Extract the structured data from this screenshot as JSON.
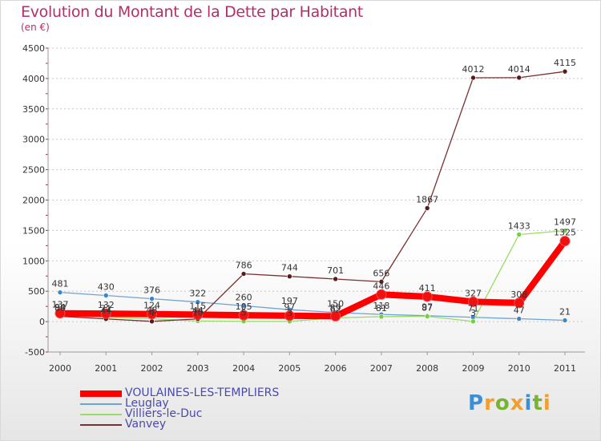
{
  "header": {
    "title": "Evolution du Montant de la Dette par Habitant",
    "unit": "(en €)"
  },
  "logo": {
    "text": "Proxiti"
  },
  "colors": {
    "title": "#b0306a",
    "grid": "#c8c8c8"
  },
  "chart_data": {
    "type": "line",
    "title": "Evolution du Montant de la Dette par Habitant",
    "ylabel": "(en €)",
    "xlabel": "",
    "x": [
      "2000",
      "2001",
      "2002",
      "2003",
      "2004",
      "2005",
      "2006",
      "2007",
      "2008",
      "2009",
      "2010",
      "2011"
    ],
    "ylim": [
      -500,
      4500
    ],
    "yticks": [
      -500,
      0,
      500,
      1000,
      1500,
      2000,
      2500,
      3000,
      3500,
      4000,
      4500
    ],
    "grid": "horizontal-dashed",
    "legend_position": "bottom-left",
    "series": [
      {
        "name": "VOULAINES-LES-TEMPLIERS",
        "color": "#ff0000",
        "marker_color": "#ee1111",
        "line_width": 8,
        "values": [
          137,
          132,
          124,
          115,
          105,
          97,
          89,
          446,
          411,
          327,
          308,
          1325
        ],
        "labels": [
          "137",
          "132",
          "124",
          "115",
          "105",
          "97",
          "89",
          "446",
          "411",
          "327",
          "308",
          "1325"
        ]
      },
      {
        "name": "Leuglay",
        "color": "#6fa3d2",
        "marker_color": "#3a86c8",
        "line_width": 1.3,
        "values": [
          481,
          430,
          376,
          322,
          260,
          197,
          150,
          118,
          97,
          71,
          47,
          21
        ],
        "labels": [
          "481",
          "430",
          "376",
          "322",
          "260",
          "197",
          "150",
          "118",
          "97",
          "71",
          "47",
          "21"
        ]
      },
      {
        "name": "Villiers-le-Duc",
        "color": "#99dd66",
        "marker_color": "#77cc44",
        "line_width": 1.3,
        "values": [
          94,
          71,
          48,
          10,
          5,
          3,
          62,
          81,
          87,
          3,
          1433,
          1497
        ],
        "labels": [
          "94",
          "71",
          "48",
          "10",
          "5",
          "3",
          "62",
          "81",
          "87",
          "3",
          "1433",
          "1497"
        ]
      },
      {
        "name": "Vanvey",
        "color": "#7a3030",
        "marker_color": "#5a1a1a",
        "line_width": 1.3,
        "values": [
          88,
          44,
          4,
          44,
          786,
          744,
          701,
          656,
          1867,
          4012,
          4014,
          4115
        ],
        "labels": [
          "88",
          "44",
          "4",
          "44",
          "786",
          "744",
          "701",
          "656",
          "1867",
          "4012",
          "4014",
          "4115"
        ]
      }
    ]
  }
}
